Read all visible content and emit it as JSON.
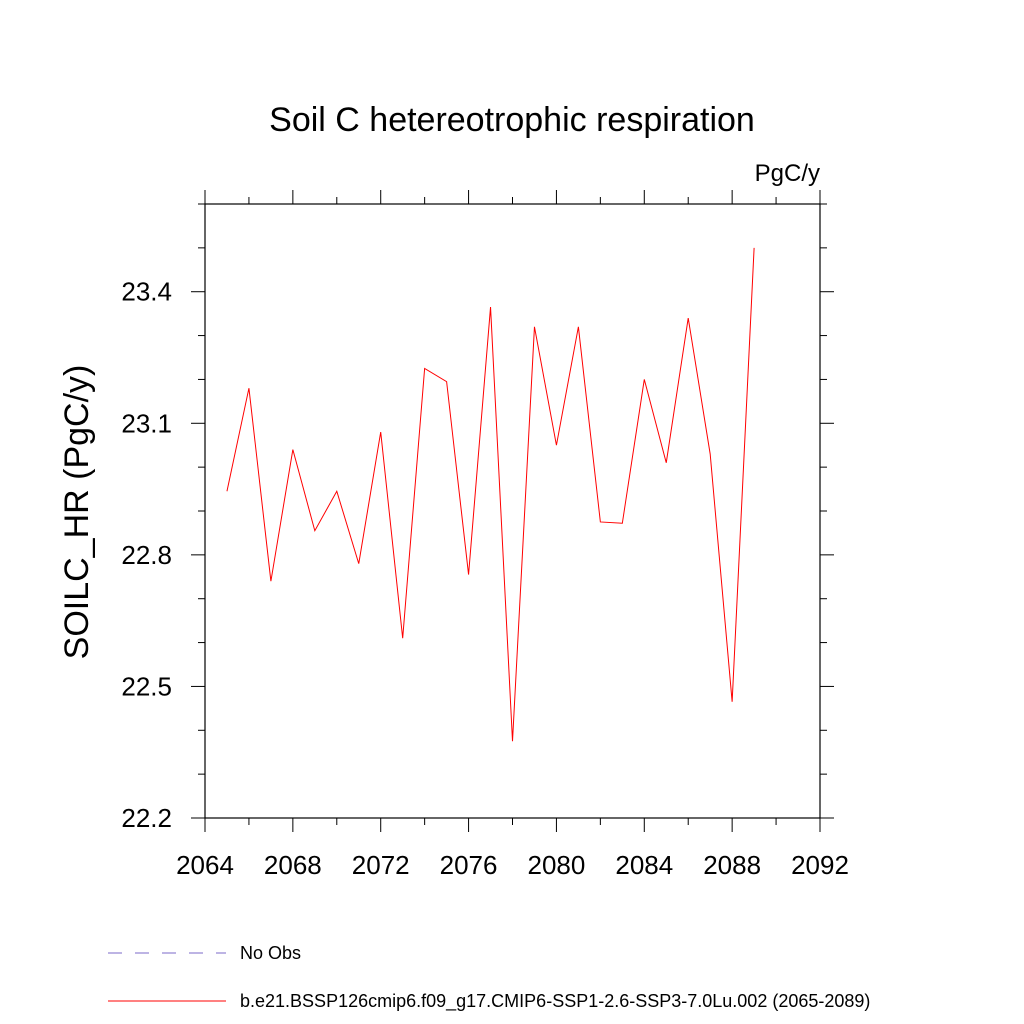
{
  "chart_data": {
    "type": "line",
    "title": "Soil C hetereotrophic respiration",
    "units": "PgC/y",
    "xlabel": "",
    "ylabel": "SOILC_HR  (PgC/y)",
    "xlim": [
      2064,
      2092
    ],
    "ylim": [
      22.2,
      23.6
    ],
    "x_ticks": [
      2064,
      2068,
      2072,
      2076,
      2080,
      2084,
      2088,
      2092
    ],
    "x_tick_labels": [
      "2064",
      "2068",
      "2072",
      "2076",
      "2080",
      "2084",
      "2088",
      "2092"
    ],
    "y_ticks": [
      22.2,
      22.5,
      22.8,
      23.1,
      23.4
    ],
    "y_tick_labels": [
      "22.2",
      "22.5",
      "22.8",
      "23.1",
      "23.4"
    ],
    "x_minor_step": 2,
    "y_minor_step": 0.1,
    "series": [
      {
        "name": "b.e21.BSSP126cmip6.f09_g17.CMIP6-SSP1-2.6-SSP3-7.0Lu.002 (2065-2089)",
        "color": "#ff0000",
        "x": [
          2065,
          2066,
          2067,
          2068,
          2069,
          2070,
          2071,
          2072,
          2073,
          2074,
          2075,
          2076,
          2077,
          2078,
          2079,
          2080,
          2081,
          2082,
          2083,
          2084,
          2085,
          2086,
          2087,
          2088,
          2089
        ],
        "y": [
          22.945,
          23.18,
          22.74,
          23.04,
          22.855,
          22.945,
          22.78,
          23.08,
          22.61,
          23.225,
          23.195,
          22.755,
          23.365,
          22.375,
          23.32,
          23.05,
          23.32,
          22.875,
          22.872,
          23.2,
          23.01,
          23.34,
          23.03,
          22.465,
          23.5
        ]
      }
    ],
    "legend": [
      {
        "label": "No Obs",
        "style": "dashed",
        "color": "#7b68c8"
      },
      {
        "label": "b.e21.BSSP126cmip6.f09_g17.CMIP6-SSP1-2.6-SSP3-7.0Lu.002 (2065-2089)",
        "style": "solid",
        "color": "#ff0000"
      }
    ]
  }
}
